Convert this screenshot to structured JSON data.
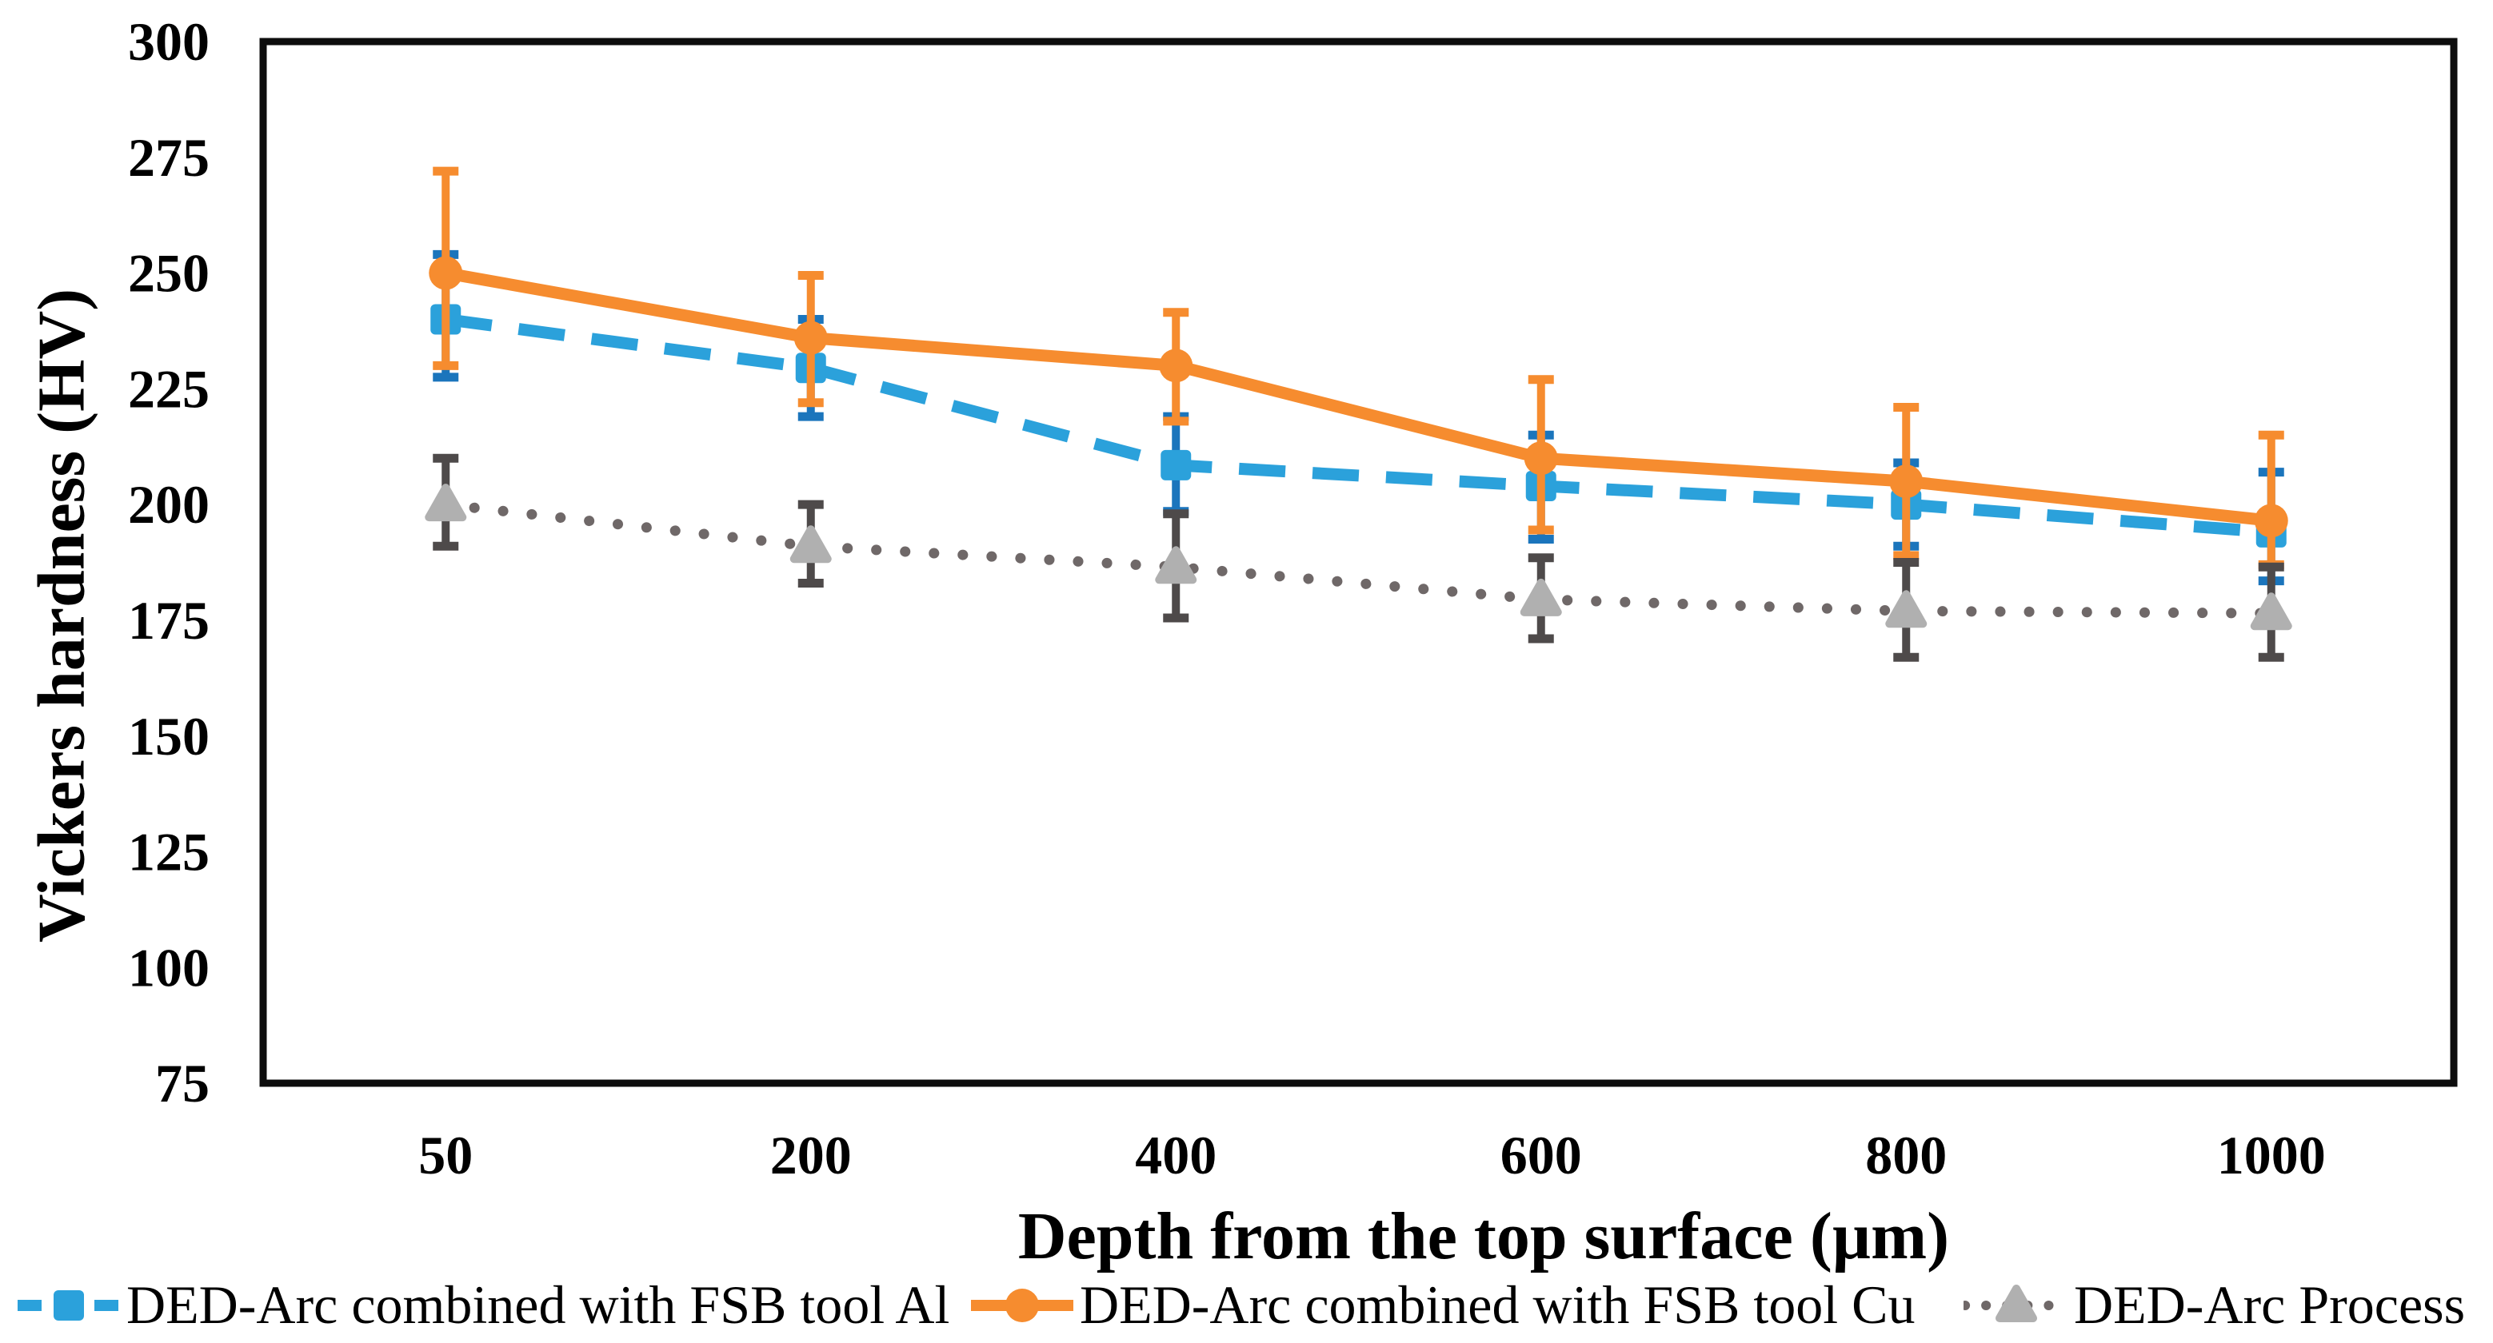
{
  "figure": {
    "x_axis_title": "Depth from the top surface (µm)",
    "y_axis_title": "Vickers hardness (HV)"
  },
  "chart_data": {
    "type": "line",
    "title": "",
    "xlabel": "Depth from the top surface (µm)",
    "ylabel": "Vickers hardness (HV)",
    "categories": [
      50,
      200,
      400,
      600,
      800,
      1000
    ],
    "y_ticks": [
      300,
      275,
      250,
      225,
      200,
      175,
      150,
      125,
      100,
      75
    ],
    "ylim": [
      75,
      300
    ],
    "grid": false,
    "legend_position": "bottom",
    "frame_color": "#0d0d0d",
    "series": [
      {
        "name": "DED-Arc combined with FSB tool Al",
        "color": "#2ba1db",
        "error_color": "#1b75bc",
        "marker_color": "#2ba1db",
        "line_style": "dashed",
        "marker": "square",
        "values": [
          240,
          229.5,
          208.5,
          204,
          200,
          194
        ],
        "err_upper": [
          254,
          240,
          219,
          215,
          209,
          207
        ],
        "err_lower": [
          227.5,
          219,
          198.5,
          192.5,
          191,
          183.5
        ]
      },
      {
        "name": "DED-Arc combined with FSB tool Cu",
        "color": "#f68c2f",
        "error_color": "#f68c2f",
        "marker_color": "#f68c2f",
        "line_style": "solid",
        "marker": "circle",
        "values": [
          250,
          236,
          230,
          210,
          205,
          196.5
        ],
        "err_upper": [
          272,
          249.5,
          241.5,
          227,
          221,
          215
        ],
        "err_lower": [
          230,
          222,
          218,
          194.5,
          189,
          187
        ]
      },
      {
        "name": "DED-Arc Process",
        "color": "#6f6868",
        "error_color": "#4e4a4a",
        "marker_color": "#b0b0b0",
        "line_style": "dotted",
        "marker": "triangle",
        "values": [
          200,
          191,
          186.5,
          179.5,
          177,
          176.5
        ],
        "err_upper": [
          210,
          200,
          198,
          188.5,
          187.5,
          186.5
        ],
        "err_lower": [
          191,
          183,
          175.5,
          171,
          167,
          167
        ]
      }
    ]
  }
}
